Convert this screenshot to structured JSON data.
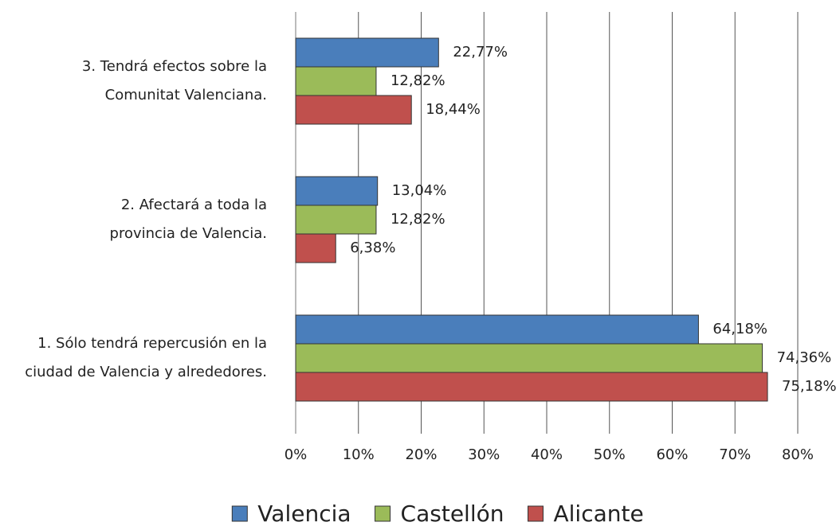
{
  "chart_data": {
    "type": "bar",
    "orientation": "horizontal",
    "categories": [
      [
        "1. Sólo tendrá repercusión en la",
        "ciudad de Valencia y alrededores."
      ],
      [
        "2. Afectará a toda la",
        "provincia de Valencia."
      ],
      [
        "3. Tendrá efectos sobre la",
        "Comunitat Valenciana."
      ]
    ],
    "series": [
      {
        "name": "Valencia",
        "color": "#4a7ebb",
        "values": [
          64.18,
          13.04,
          22.77
        ],
        "value_labels": [
          "64,18%",
          "13,04%",
          "22,77%"
        ]
      },
      {
        "name": "Castellón",
        "color": "#9bbb59",
        "values": [
          74.36,
          12.82,
          12.82
        ],
        "value_labels": [
          "74,36%",
          "12,82%",
          "12,82%"
        ]
      },
      {
        "name": "Alicante",
        "color": "#c0504d",
        "values": [
          75.18,
          6.38,
          18.44
        ],
        "value_labels": [
          "75,18%",
          "6,38%",
          "18,44%"
        ]
      }
    ],
    "xlim": [
      0,
      80
    ],
    "xticks": [
      {
        "value": 0,
        "label": "0%"
      },
      {
        "value": 10,
        "label": "10%"
      },
      {
        "value": 20,
        "label": "20%"
      },
      {
        "value": 30,
        "label": "30%"
      },
      {
        "value": 40,
        "label": "40%"
      },
      {
        "value": 50,
        "label": "50%"
      },
      {
        "value": 60,
        "label": "60%"
      },
      {
        "value": 70,
        "label": "70%"
      },
      {
        "value": 80,
        "label": "80%"
      }
    ],
    "grid": true,
    "legend": "bottom"
  }
}
